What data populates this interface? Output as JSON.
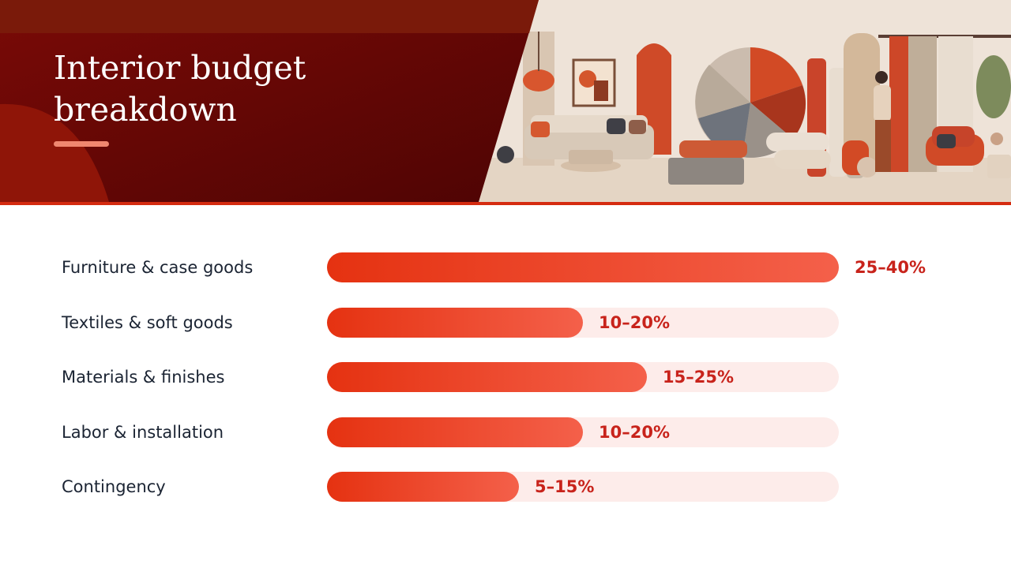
{
  "header": {
    "title": "Interior budget breakdown",
    "illustration": "interior-design-materials-illustration"
  },
  "colors": {
    "header_dark": "#6a0606",
    "header_light": "#8a1208",
    "accent_rule": "#d52b10",
    "title_accent": "#f0876f",
    "bar_start": "#e53211",
    "bar_end": "#f4604a",
    "track": "#fdecea",
    "value_text": "#c8231b",
    "label_text": "#1b2433"
  },
  "chart_data": {
    "type": "bar",
    "orientation": "horizontal",
    "title": "Interior budget breakdown",
    "categories": [
      "Furniture & case goods",
      "Textiles & soft goods",
      "Materials & finishes",
      "Labor & installation",
      "Contingency"
    ],
    "series": [
      {
        "values": [
          40,
          20,
          25,
          20,
          15
        ]
      }
    ],
    "labels": [
      "25–40%",
      "10–20%",
      "15–25%",
      "10–20%",
      "5–15%"
    ],
    "xlim": [
      0,
      40
    ],
    "grid": false,
    "legend": "none"
  }
}
